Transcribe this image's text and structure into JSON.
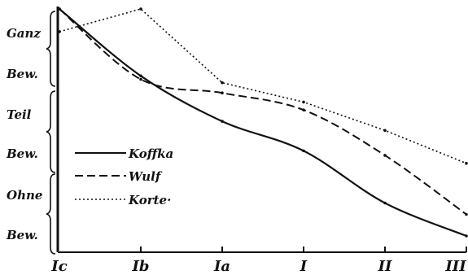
{
  "chart_data": {
    "type": "line",
    "categories": [
      "Ic",
      "Ib",
      "Ia",
      "I",
      "II",
      "III"
    ],
    "y_axis_groups": [
      {
        "lines": [
          "Ganz",
          "Bew."
        ]
      },
      {
        "lines": [
          "Teil",
          "Bew."
        ]
      },
      {
        "lines": [
          "Ohne",
          "Bew."
        ]
      }
    ],
    "ylim": [
      0,
      100
    ],
    "grid": false,
    "legend_position": "middle-left",
    "series": [
      {
        "name": "Koffka",
        "dash": "solid",
        "values": [
          100,
          70.5,
          50.5,
          37.5,
          14.5,
          0
        ]
      },
      {
        "name": "Wulf",
        "dash": "dashed",
        "values": [
          100,
          69,
          63,
          55.5,
          35.5,
          9.5
        ]
      },
      {
        "name": "Korte·",
        "dash": "dotted",
        "values": [
          90,
          100,
          67.5,
          59,
          46.5,
          32
        ]
      }
    ],
    "line_color": "#111111"
  }
}
